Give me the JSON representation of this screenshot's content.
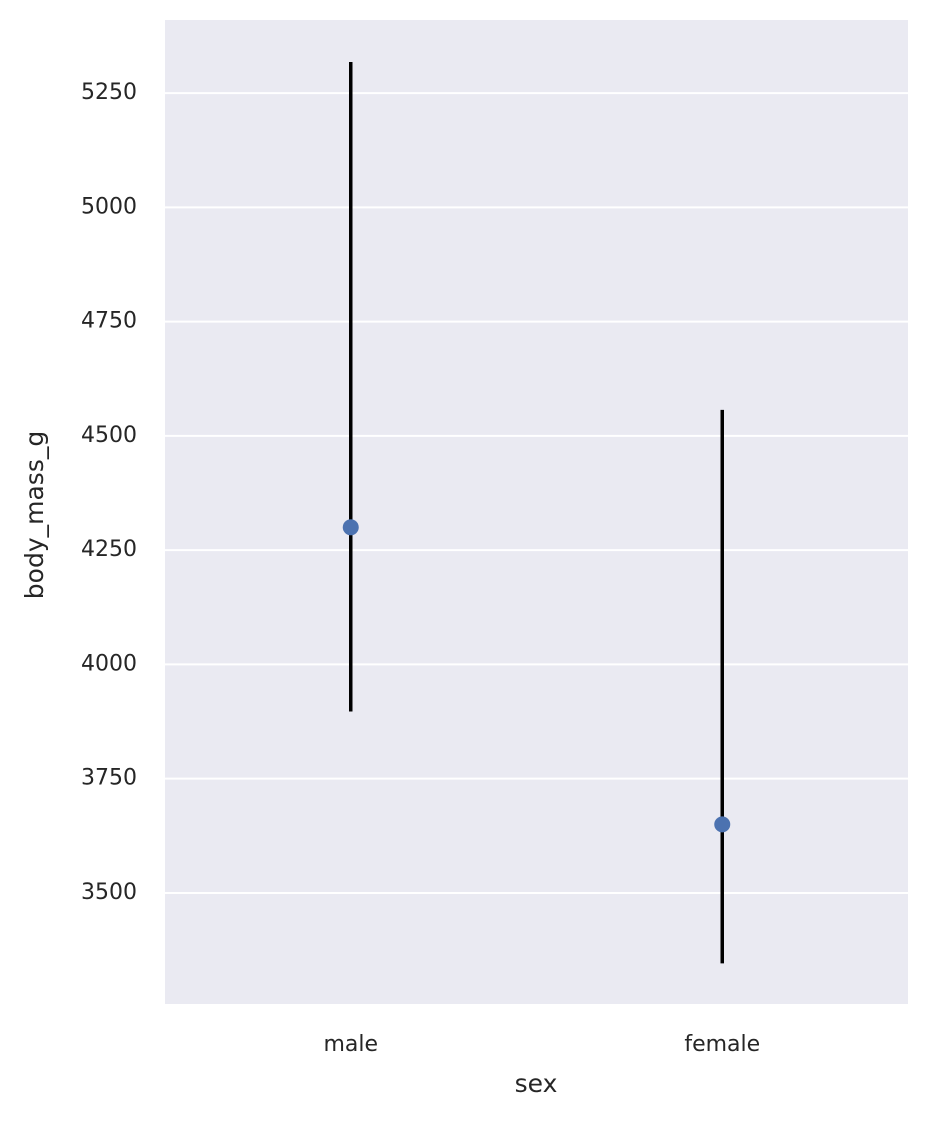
{
  "chart_data": {
    "type": "point",
    "x_label": "sex",
    "y_label": "body_mass_g",
    "categories": [
      "male",
      "female"
    ],
    "values": [
      4300,
      3650
    ],
    "lower": [
      3897,
      3346
    ],
    "upper": [
      5318,
      4557
    ],
    "color": "#4c72b0",
    "errorbar_color": "#000000",
    "ylim": [
      3257,
      5410
    ],
    "yticks": [
      3500,
      3750,
      4000,
      4250,
      4500,
      4750,
      5000,
      5250
    ],
    "grid": true
  }
}
